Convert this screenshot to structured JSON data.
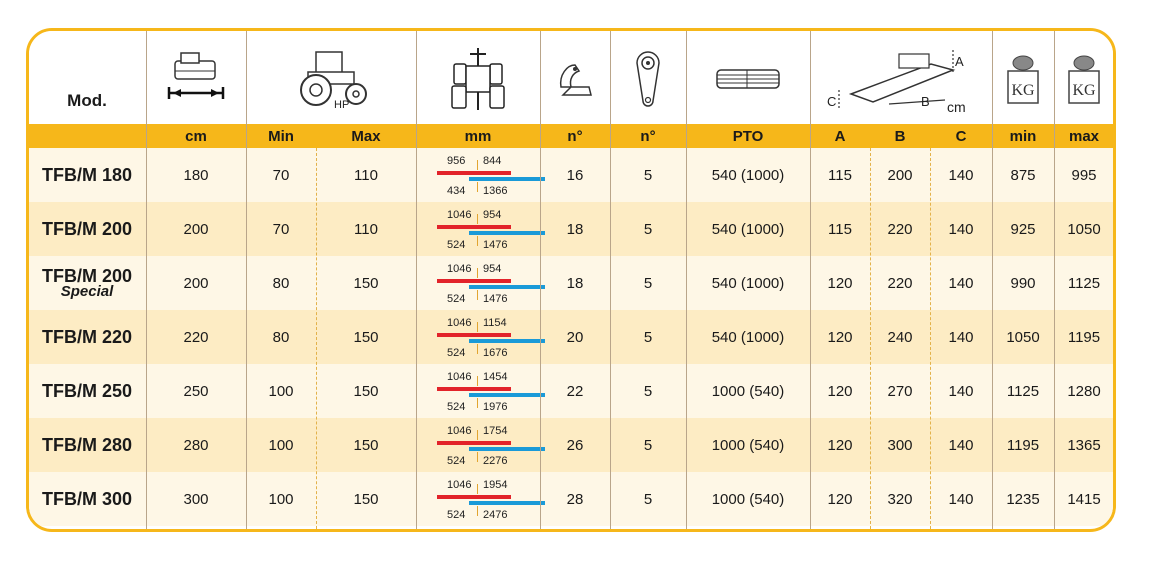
{
  "header": {
    "model_label": "Mod.",
    "hp_label": "HP",
    "cm_label": "cm",
    "dim_letters": [
      "A",
      "B",
      "C"
    ],
    "kg_label": "KG",
    "units": [
      "cm",
      "Min",
      "Max",
      "mm",
      "n°",
      "n°",
      "PTO",
      "A",
      "B",
      "C",
      "min",
      "max"
    ]
  },
  "rows": [
    {
      "model": "TFB/M 180",
      "sub": "",
      "cm": "180",
      "hp_min": "70",
      "hp_max": "110",
      "mm_top": [
        "956",
        "844"
      ],
      "mm_bottom": [
        "434",
        "1366"
      ],
      "blades": "16",
      "belts": "5",
      "pto": "540 (1000)",
      "a": "115",
      "b": "200",
      "c": "140",
      "kg_min": "875",
      "kg_max": "995"
    },
    {
      "model": "TFB/M 200",
      "sub": "",
      "cm": "200",
      "hp_min": "70",
      "hp_max": "110",
      "mm_top": [
        "1046",
        "954"
      ],
      "mm_bottom": [
        "524",
        "1476"
      ],
      "blades": "18",
      "belts": "5",
      "pto": "540 (1000)",
      "a": "115",
      "b": "220",
      "c": "140",
      "kg_min": "925",
      "kg_max": "1050"
    },
    {
      "model": "TFB/M 200",
      "sub": "Special",
      "cm": "200",
      "hp_min": "80",
      "hp_max": "150",
      "mm_top": [
        "1046",
        "954"
      ],
      "mm_bottom": [
        "524",
        "1476"
      ],
      "blades": "18",
      "belts": "5",
      "pto": "540 (1000)",
      "a": "120",
      "b": "220",
      "c": "140",
      "kg_min": "990",
      "kg_max": "1125"
    },
    {
      "model": "TFB/M 220",
      "sub": "",
      "cm": "220",
      "hp_min": "80",
      "hp_max": "150",
      "mm_top": [
        "1046",
        "1154"
      ],
      "mm_bottom": [
        "524",
        "1676"
      ],
      "blades": "20",
      "belts": "5",
      "pto": "540 (1000)",
      "a": "120",
      "b": "240",
      "c": "140",
      "kg_min": "1050",
      "kg_max": "1195"
    },
    {
      "model": "TFB/M 250",
      "sub": "",
      "cm": "250",
      "hp_min": "100",
      "hp_max": "150",
      "mm_top": [
        "1046",
        "1454"
      ],
      "mm_bottom": [
        "524",
        "1976"
      ],
      "blades": "22",
      "belts": "5",
      "pto": "1000 (540)",
      "a": "120",
      "b": "270",
      "c": "140",
      "kg_min": "1125",
      "kg_max": "1280"
    },
    {
      "model": "TFB/M 280",
      "sub": "",
      "cm": "280",
      "hp_min": "100",
      "hp_max": "150",
      "mm_top": [
        "1046",
        "1754"
      ],
      "mm_bottom": [
        "524",
        "2276"
      ],
      "blades": "26",
      "belts": "5",
      "pto": "1000 (540)",
      "a": "120",
      "b": "300",
      "c": "140",
      "kg_min": "1195",
      "kg_max": "1365"
    },
    {
      "model": "TFB/M 300",
      "sub": "",
      "cm": "300",
      "hp_min": "100",
      "hp_max": "150",
      "mm_top": [
        "1046",
        "1954"
      ],
      "mm_bottom": [
        "524",
        "2476"
      ],
      "blades": "28",
      "belts": "5",
      "pto": "1000 (540)",
      "a": "120",
      "b": "320",
      "c": "140",
      "kg_min": "1235",
      "kg_max": "1415"
    }
  ],
  "colors": {
    "accent": "#f6b71a",
    "row_light": "#fef7e6",
    "row_dark": "#fdecc4",
    "red_bar": "#e2232a",
    "blue_bar": "#1a9ad8"
  },
  "icons": [
    "mower-width-icon",
    "tractor-hp-icon",
    "track-width-icon",
    "blade-icon",
    "belt-icon",
    "pto-shaft-icon",
    "offset-dimensions-icon",
    "weight-min-icon",
    "weight-max-icon"
  ]
}
